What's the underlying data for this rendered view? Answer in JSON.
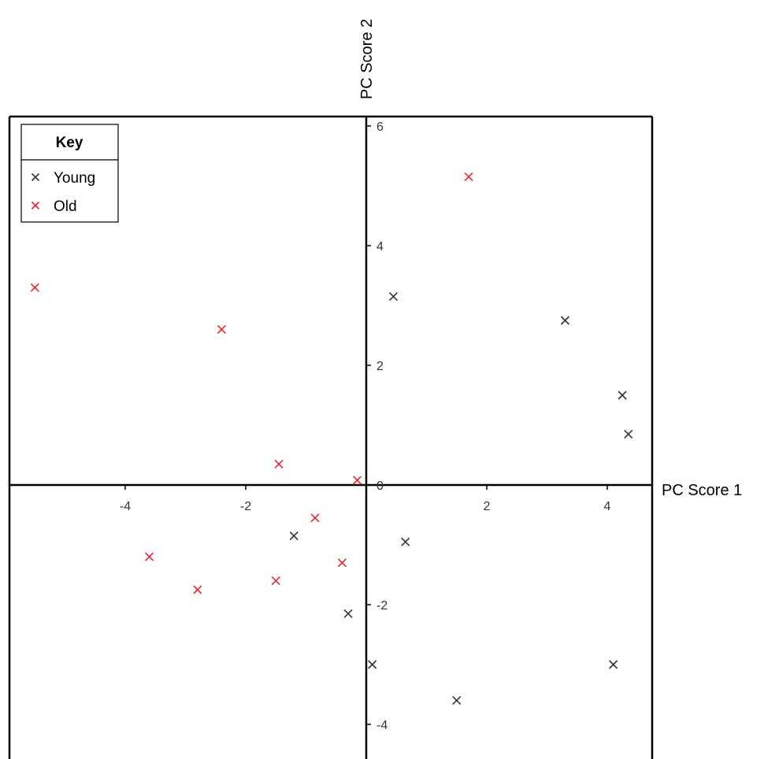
{
  "chart_data": {
    "type": "scatter",
    "title": "",
    "xlabel": "PC Score 1",
    "ylabel": "PC Score 2",
    "xlim": [
      -6.0,
      4.8
    ],
    "ylim": [
      -4.5,
      6.1
    ],
    "xticks": [
      -4,
      -2,
      0,
      2,
      4
    ],
    "yticks": [
      -4,
      -2,
      0,
      2,
      4,
      6
    ],
    "xtick_labels": [
      "-4",
      "-2",
      "0",
      "2",
      "4"
    ],
    "ytick_labels": [
      "-4",
      "-2",
      "0",
      "2",
      "4",
      "6"
    ],
    "grid": false,
    "legend": {
      "title": "Key",
      "position": "top-left",
      "entries": [
        "Young",
        "Old"
      ]
    },
    "series": [
      {
        "name": "Young",
        "color": "#333333",
        "marker": "x",
        "points": [
          [
            0.45,
            3.15
          ],
          [
            3.3,
            2.75
          ],
          [
            4.25,
            1.5
          ],
          [
            4.35,
            0.85
          ],
          [
            -1.2,
            -0.85
          ],
          [
            0.65,
            -0.95
          ],
          [
            -0.3,
            -2.15
          ],
          [
            0.1,
            -3.0
          ],
          [
            1.5,
            -3.6
          ],
          [
            4.1,
            -3.0
          ]
        ]
      },
      {
        "name": "Old",
        "color": "#e8262b",
        "marker": "x",
        "points": [
          [
            -5.5,
            3.3
          ],
          [
            -2.4,
            2.6
          ],
          [
            1.7,
            5.15
          ],
          [
            -1.45,
            0.35
          ],
          [
            -0.15,
            0.08
          ],
          [
            -0.85,
            -0.55
          ],
          [
            -3.6,
            -1.2
          ],
          [
            -2.8,
            -1.75
          ],
          [
            -1.5,
            -1.6
          ],
          [
            -0.4,
            -1.3
          ]
        ]
      }
    ]
  }
}
